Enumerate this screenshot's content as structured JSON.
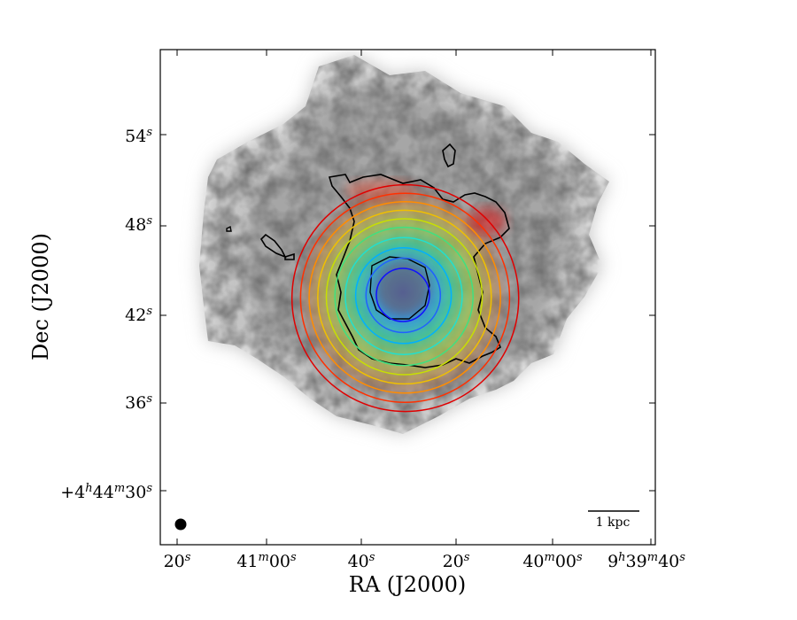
{
  "figure": {
    "xlabel": "RA (J2000)",
    "ylabel": "Dec (J2000)",
    "x_ticks": [
      {
        "main": "20",
        "sup": "s"
      },
      {
        "pre": "41",
        "presup": "m",
        "main": "00",
        "sup": "s"
      },
      {
        "main": "40",
        "sup": "s"
      },
      {
        "main": "20",
        "sup": "s"
      },
      {
        "pre": "40",
        "presup": "m",
        "main": "00",
        "sup": "s"
      },
      {
        "pre0": "9",
        "pre0sup": "h",
        "pre": "39",
        "presup": "m",
        "main": "40",
        "sup": "s"
      }
    ],
    "y_ticks": [
      {
        "main": "54",
        "sup": "s"
      },
      {
        "main": "48",
        "sup": "s"
      },
      {
        "main": "42",
        "sup": "s"
      },
      {
        "main": "36",
        "sup": "s"
      },
      {
        "pre0": "+4",
        "pre0sup": "h",
        "pre": "44",
        "presup": "m",
        "main": "30",
        "sup": "s"
      }
    ],
    "scale_bar_label": "1 kpc",
    "contour_colors": [
      "#1010ff",
      "#2060ff",
      "#00b0ff",
      "#20e0d0",
      "#40e080",
      "#c8e000",
      "#f0c000",
      "#ff8c00",
      "#ff3000",
      "#e00000"
    ],
    "beam": "filled-circle"
  }
}
